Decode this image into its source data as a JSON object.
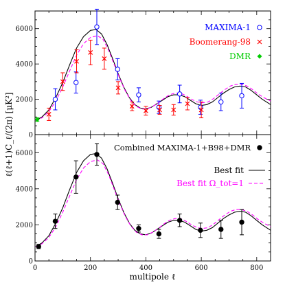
{
  "figure": {
    "ylabel": "ℓ(ℓ+1)C_ℓ/(2π) [μK²]",
    "xlabel": "multipole ℓ"
  },
  "chart_data": [
    {
      "type": "scatter",
      "panel": "top",
      "xlim": [
        0,
        850
      ],
      "ylim": [
        0,
        7000
      ],
      "x_ticks": [
        0,
        200,
        400,
        600,
        800
      ],
      "y_ticks": [
        0,
        2000,
        4000,
        6000
      ],
      "legend_position": "top-right",
      "series": [
        {
          "name": "MAXIMA-1",
          "marker": "open-circle",
          "color": "#0000ff",
          "points": [
            {
              "x": 73,
              "y": 2000,
              "err": 600
            },
            {
              "x": 148,
              "y": 2950,
              "err": 600
            },
            {
              "x": 223,
              "y": 6100,
              "err": 1000
            },
            {
              "x": 298,
              "y": 3700,
              "err": 600
            },
            {
              "x": 374,
              "y": 2250,
              "err": 400
            },
            {
              "x": 447,
              "y": 1550,
              "err": 350
            },
            {
              "x": 522,
              "y": 2300,
              "err": 500
            },
            {
              "x": 597,
              "y": 1550,
              "err": 400
            },
            {
              "x": 671,
              "y": 1850,
              "err": 500
            },
            {
              "x": 746,
              "y": 2200,
              "err": 700
            }
          ]
        },
        {
          "name": "Boomerang-98",
          "marker": "cross",
          "color": "#ff0000",
          "points": [
            {
              "x": 50,
              "y": 1150,
              "err": 350
            },
            {
              "x": 100,
              "y": 3000,
              "err": 500
            },
            {
              "x": 150,
              "y": 4150,
              "err": 650
            },
            {
              "x": 200,
              "y": 4650,
              "err": 700
            },
            {
              "x": 250,
              "y": 4300,
              "err": 600
            },
            {
              "x": 300,
              "y": 2650,
              "err": 350
            },
            {
              "x": 350,
              "y": 1600,
              "err": 250
            },
            {
              "x": 400,
              "y": 1350,
              "err": 250
            },
            {
              "x": 450,
              "y": 1400,
              "err": 250
            },
            {
              "x": 500,
              "y": 1400,
              "err": 300
            },
            {
              "x": 550,
              "y": 1750,
              "err": 350
            },
            {
              "x": 600,
              "y": 1400,
              "err": 450
            }
          ]
        },
        {
          "name": "DMR",
          "marker": "filled-diamond",
          "color": "#00cc00",
          "points": [
            {
              "x": 8,
              "y": 850,
              "err": 100
            }
          ]
        }
      ],
      "curves": [
        {
          "name": "",
          "style": "solid",
          "color": "#000000",
          "points": [
            [
              2,
              800
            ],
            [
              25,
              1000
            ],
            [
              50,
              1400
            ],
            [
              75,
              2100
            ],
            [
              100,
              2950
            ],
            [
              125,
              3950
            ],
            [
              150,
              4900
            ],
            [
              175,
              5550
            ],
            [
              200,
              5900
            ],
            [
              220,
              5950
            ],
            [
              240,
              5700
            ],
            [
              260,
              5100
            ],
            [
              280,
              4300
            ],
            [
              300,
              3450
            ],
            [
              320,
              2700
            ],
            [
              340,
              2100
            ],
            [
              360,
              1700
            ],
            [
              380,
              1500
            ],
            [
              400,
              1450
            ],
            [
              420,
              1550
            ],
            [
              440,
              1750
            ],
            [
              460,
              1950
            ],
            [
              480,
              2150
            ],
            [
              500,
              2250
            ],
            [
              520,
              2250
            ],
            [
              540,
              2150
            ],
            [
              560,
              1950
            ],
            [
              580,
              1750
            ],
            [
              600,
              1650
            ],
            [
              620,
              1700
            ],
            [
              640,
              1850
            ],
            [
              660,
              2100
            ],
            [
              680,
              2350
            ],
            [
              700,
              2550
            ],
            [
              720,
              2700
            ],
            [
              740,
              2750
            ],
            [
              760,
              2700
            ],
            [
              780,
              2500
            ],
            [
              800,
              2250
            ],
            [
              820,
              2000
            ],
            [
              840,
              1800
            ],
            [
              850,
              1700
            ]
          ]
        },
        {
          "name": "",
          "style": "dashed",
          "color": "#ff00ff",
          "points": [
            [
              2,
              800
            ],
            [
              25,
              950
            ],
            [
              50,
              1300
            ],
            [
              75,
              1900
            ],
            [
              100,
              2700
            ],
            [
              125,
              3600
            ],
            [
              150,
              4500
            ],
            [
              175,
              5150
            ],
            [
              200,
              5500
            ],
            [
              225,
              5600
            ],
            [
              245,
              5400
            ],
            [
              265,
              4800
            ],
            [
              285,
              4000
            ],
            [
              305,
              3200
            ],
            [
              325,
              2500
            ],
            [
              345,
              1950
            ],
            [
              365,
              1600
            ],
            [
              385,
              1450
            ],
            [
              405,
              1450
            ],
            [
              425,
              1600
            ],
            [
              445,
              1800
            ],
            [
              465,
              2050
            ],
            [
              485,
              2250
            ],
            [
              505,
              2350
            ],
            [
              525,
              2350
            ],
            [
              545,
              2200
            ],
            [
              565,
              2000
            ],
            [
              585,
              1850
            ],
            [
              605,
              1800
            ],
            [
              625,
              1850
            ],
            [
              645,
              2050
            ],
            [
              665,
              2300
            ],
            [
              685,
              2550
            ],
            [
              705,
              2750
            ],
            [
              725,
              2850
            ],
            [
              745,
              2850
            ],
            [
              765,
              2750
            ],
            [
              785,
              2550
            ],
            [
              805,
              2300
            ],
            [
              825,
              2100
            ],
            [
              850,
              1900
            ]
          ]
        }
      ]
    },
    {
      "type": "scatter",
      "panel": "bottom",
      "xlim": [
        0,
        850
      ],
      "ylim": [
        0,
        7000
      ],
      "x_ticks": [
        0,
        200,
        400,
        600,
        800
      ],
      "y_ticks": [
        0,
        2000,
        4000,
        6000
      ],
      "legend_position": "top-right",
      "series": [
        {
          "name": "Combined MAXIMA-1+B98+DMR",
          "marker": "filled-circle",
          "color": "#000000",
          "points": [
            {
              "x": 13,
              "y": 800,
              "err": 120
            },
            {
              "x": 73,
              "y": 2200,
              "err": 400
            },
            {
              "x": 148,
              "y": 4650,
              "err": 900
            },
            {
              "x": 223,
              "y": 5900,
              "err": 600
            },
            {
              "x": 298,
              "y": 3250,
              "err": 400
            },
            {
              "x": 374,
              "y": 1800,
              "err": 200
            },
            {
              "x": 447,
              "y": 1500,
              "err": 250
            },
            {
              "x": 522,
              "y": 2250,
              "err": 350
            },
            {
              "x": 597,
              "y": 1700,
              "err": 400
            },
            {
              "x": 671,
              "y": 1750,
              "err": 500
            },
            {
              "x": 746,
              "y": 2150,
              "err": 700
            }
          ]
        }
      ],
      "curves": [
        {
          "name": "Best fit",
          "style": "solid",
          "color": "#000000",
          "points": [
            [
              2,
              800
            ],
            [
              25,
              1000
            ],
            [
              50,
              1400
            ],
            [
              75,
              2100
            ],
            [
              100,
              2950
            ],
            [
              125,
              3950
            ],
            [
              150,
              4900
            ],
            [
              175,
              5550
            ],
            [
              200,
              5900
            ],
            [
              220,
              5950
            ],
            [
              240,
              5700
            ],
            [
              260,
              5100
            ],
            [
              280,
              4300
            ],
            [
              300,
              3450
            ],
            [
              320,
              2700
            ],
            [
              340,
              2100
            ],
            [
              360,
              1700
            ],
            [
              380,
              1500
            ],
            [
              400,
              1450
            ],
            [
              420,
              1550
            ],
            [
              440,
              1750
            ],
            [
              460,
              1950
            ],
            [
              480,
              2150
            ],
            [
              500,
              2250
            ],
            [
              520,
              2250
            ],
            [
              540,
              2150
            ],
            [
              560,
              1950
            ],
            [
              580,
              1750
            ],
            [
              600,
              1650
            ],
            [
              620,
              1700
            ],
            [
              640,
              1850
            ],
            [
              660,
              2100
            ],
            [
              680,
              2350
            ],
            [
              700,
              2550
            ],
            [
              720,
              2700
            ],
            [
              740,
              2750
            ],
            [
              760,
              2700
            ],
            [
              780,
              2500
            ],
            [
              800,
              2250
            ],
            [
              820,
              2000
            ],
            [
              840,
              1800
            ],
            [
              850,
              1700
            ]
          ]
        },
        {
          "name": "Best fit Ω_tot=1",
          "style": "dashed",
          "color": "#ff00ff",
          "points": [
            [
              2,
              800
            ],
            [
              25,
              950
            ],
            [
              50,
              1300
            ],
            [
              75,
              1900
            ],
            [
              100,
              2700
            ],
            [
              125,
              3600
            ],
            [
              150,
              4500
            ],
            [
              175,
              5150
            ],
            [
              200,
              5500
            ],
            [
              225,
              5600
            ],
            [
              245,
              5400
            ],
            [
              265,
              4800
            ],
            [
              285,
              4000
            ],
            [
              305,
              3200
            ],
            [
              325,
              2500
            ],
            [
              345,
              1950
            ],
            [
              365,
              1600
            ],
            [
              385,
              1450
            ],
            [
              405,
              1450
            ],
            [
              425,
              1600
            ],
            [
              445,
              1800
            ],
            [
              465,
              2050
            ],
            [
              485,
              2250
            ],
            [
              505,
              2350
            ],
            [
              525,
              2350
            ],
            [
              545,
              2200
            ],
            [
              565,
              2000
            ],
            [
              585,
              1850
            ],
            [
              605,
              1800
            ],
            [
              625,
              1850
            ],
            [
              645,
              2050
            ],
            [
              665,
              2300
            ],
            [
              685,
              2550
            ],
            [
              705,
              2750
            ],
            [
              725,
              2850
            ],
            [
              745,
              2850
            ],
            [
              765,
              2750
            ],
            [
              785,
              2550
            ],
            [
              805,
              2300
            ],
            [
              825,
              2100
            ],
            [
              850,
              1900
            ]
          ]
        }
      ]
    }
  ]
}
